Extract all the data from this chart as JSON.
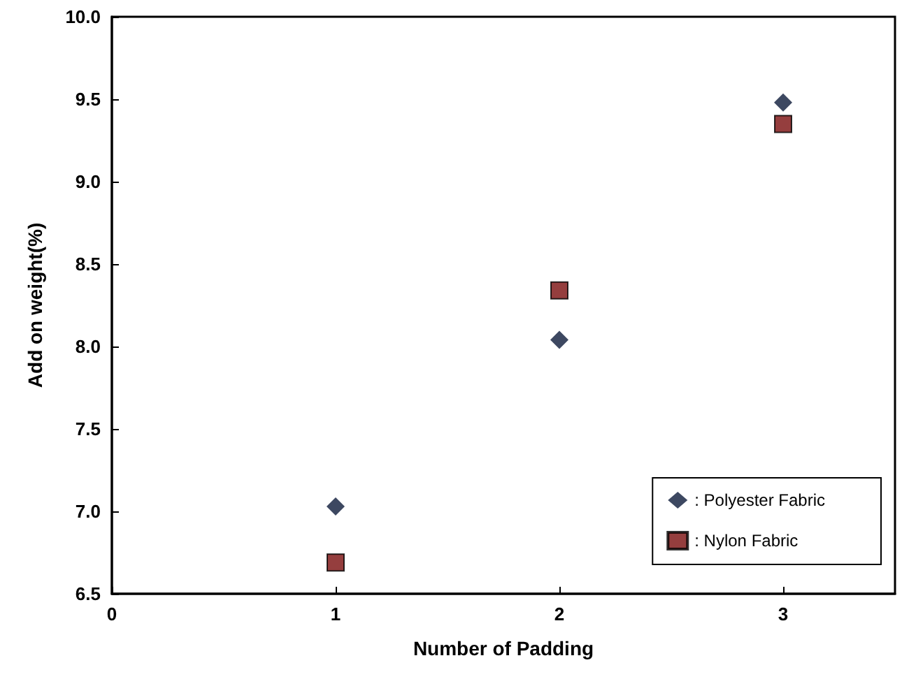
{
  "chart_data": {
    "type": "scatter",
    "xlabel": "Number of Padding",
    "ylabel": "Add on weight(%)",
    "xlim": [
      0,
      3.5
    ],
    "xticks": [
      0,
      1,
      2,
      3
    ],
    "ylim": [
      6.5,
      10.0
    ],
    "yticks": [
      {
        "value": 6.5,
        "label": "6.5"
      },
      {
        "value": 7.0,
        "label": "7.0"
      },
      {
        "value": 7.5,
        "label": "7.5"
      },
      {
        "value": 8.0,
        "label": "8.0"
      },
      {
        "value": 8.5,
        "label": "8.5"
      },
      {
        "value": 9.0,
        "label": "9.0"
      },
      {
        "value": 9.5,
        "label": "9.5"
      },
      {
        "value": 10.0,
        "label": "10.0"
      }
    ],
    "x": [
      1,
      2,
      3
    ],
    "series": [
      {
        "name": ": Polyester Fabric",
        "color": "#0d1a3a",
        "marker": "diamond",
        "values": [
          7.03,
          8.04,
          9.48
        ]
      },
      {
        "name": ": Nylon Fabric",
        "color": "#7a0e0e",
        "marker": "square",
        "values": [
          6.69,
          8.34,
          9.35
        ]
      }
    ],
    "grid": false,
    "legend": "bottom right"
  }
}
